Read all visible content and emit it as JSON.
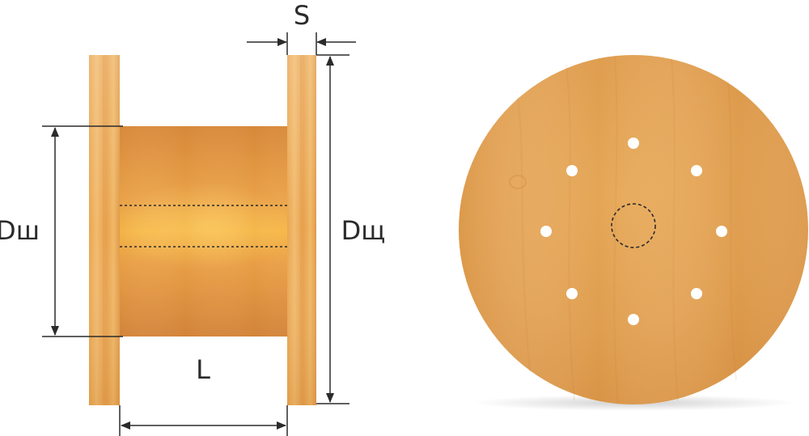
{
  "labels": {
    "flange_thickness": "S",
    "drum_diameter": "Dш",
    "flange_diameter": "Dщ",
    "drum_length": "L"
  },
  "colors": {
    "wood_light": "#f2be78",
    "wood_mid": "#e8a04a",
    "wood_dark": "#d88e3e",
    "drum_center": "#f0a835",
    "line": "#2b2b2b",
    "hole": "#ffffff"
  },
  "disk": {
    "bolt_holes": 8,
    "has_center_hole": true
  }
}
